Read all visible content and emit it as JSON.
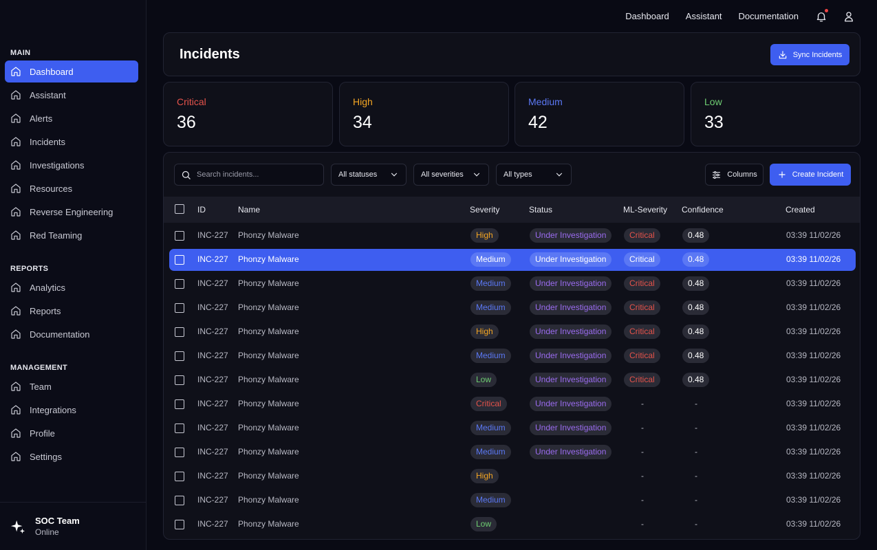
{
  "sidebar": {
    "sections": [
      {
        "heading": "MAIN",
        "items": [
          {
            "label": "Dashboard",
            "active": true
          },
          {
            "label": "Assistant"
          },
          {
            "label": "Alerts"
          },
          {
            "label": "Incidents"
          },
          {
            "label": "Investigations"
          },
          {
            "label": "Resources"
          },
          {
            "label": "Reverse Engineering"
          },
          {
            "label": "Red Teaming"
          }
        ]
      },
      {
        "heading": "REPORTS",
        "items": [
          {
            "label": "Analytics"
          },
          {
            "label": "Reports"
          },
          {
            "label": "Documentation"
          }
        ]
      },
      {
        "heading": "MANAGEMENT",
        "items": [
          {
            "label": "Team"
          },
          {
            "label": "Integrations"
          },
          {
            "label": "Profile"
          },
          {
            "label": "Settings"
          }
        ]
      }
    ],
    "team": {
      "name": "SOC Team",
      "status": "Online"
    }
  },
  "topnav": {
    "links": [
      "Dashboard",
      "Assistant",
      "Documentation"
    ]
  },
  "header": {
    "title": "Incidents",
    "sync_label": "Sync Incidents"
  },
  "stats": [
    {
      "label": "Critical",
      "value": "36",
      "color": "#e5534b"
    },
    {
      "label": "High",
      "value": "34",
      "color": "#f5a623"
    },
    {
      "label": "Medium",
      "value": "42",
      "color": "#5b78f4"
    },
    {
      "label": "Low",
      "value": "33",
      "color": "#6fcf73"
    }
  ],
  "toolbar": {
    "search_placeholder": "Search incidents...",
    "status_filter": "All statuses",
    "severity_filter": "All severities",
    "type_filter": "All types",
    "columns_label": "Columns",
    "create_label": "Create Incident"
  },
  "table": {
    "columns": [
      "ID",
      "Name",
      "Severity",
      "Status",
      "ML-Severity",
      "Confidence",
      "Created"
    ],
    "rows": [
      {
        "id": "INC-227",
        "name": "Phonzy Malware",
        "severity": "High",
        "status": "Under Investigation",
        "ml": "Critical",
        "confidence": "0.48",
        "created": "03:39 11/02/26"
      },
      {
        "id": "INC-227",
        "name": "Phonzy Malware",
        "severity": "Medium",
        "status": "Under Investigation",
        "ml": "Critical",
        "confidence": "0.48",
        "created": "03:39 11/02/26",
        "selected": true
      },
      {
        "id": "INC-227",
        "name": "Phonzy Malware",
        "severity": "Medium",
        "status": "Under Investigation",
        "ml": "Critical",
        "confidence": "0.48",
        "created": "03:39 11/02/26"
      },
      {
        "id": "INC-227",
        "name": "Phonzy Malware",
        "severity": "Medium",
        "status": "Under Investigation",
        "ml": "Critical",
        "confidence": "0.48",
        "created": "03:39 11/02/26"
      },
      {
        "id": "INC-227",
        "name": "Phonzy Malware",
        "severity": "High",
        "status": "Under Investigation",
        "ml": "Critical",
        "confidence": "0.48",
        "created": "03:39 11/02/26"
      },
      {
        "id": "INC-227",
        "name": "Phonzy Malware",
        "severity": "Medium",
        "status": "Under Investigation",
        "ml": "Critical",
        "confidence": "0.48",
        "created": "03:39 11/02/26"
      },
      {
        "id": "INC-227",
        "name": "Phonzy Malware",
        "severity": "Low",
        "status": "Under Investigation",
        "ml": "Critical",
        "confidence": "0.48",
        "created": "03:39 11/02/26"
      },
      {
        "id": "INC-227",
        "name": "Phonzy Malware",
        "severity": "Critical",
        "status": "Under Investigation",
        "ml": "-",
        "confidence": "-",
        "created": "03:39 11/02/26"
      },
      {
        "id": "INC-227",
        "name": "Phonzy Malware",
        "severity": "Medium",
        "status": "Under Investigation",
        "ml": "-",
        "confidence": "-",
        "created": "03:39 11/02/26"
      },
      {
        "id": "INC-227",
        "name": "Phonzy Malware",
        "severity": "Medium",
        "status": "Under Investigation",
        "ml": "-",
        "confidence": "-",
        "created": "03:39 11/02/26"
      },
      {
        "id": "INC-227",
        "name": "Phonzy Malware",
        "severity": "High",
        "status": "",
        "ml": "-",
        "confidence": "-",
        "created": "03:39 11/02/26"
      },
      {
        "id": "INC-227",
        "name": "Phonzy Malware",
        "severity": "Medium",
        "status": "",
        "ml": "-",
        "confidence": "-",
        "created": "03:39 11/02/26"
      },
      {
        "id": "INC-227",
        "name": "Phonzy Malware",
        "severity": "Low",
        "status": "",
        "ml": "-",
        "confidence": "-",
        "created": "03:39 11/02/26"
      }
    ]
  }
}
